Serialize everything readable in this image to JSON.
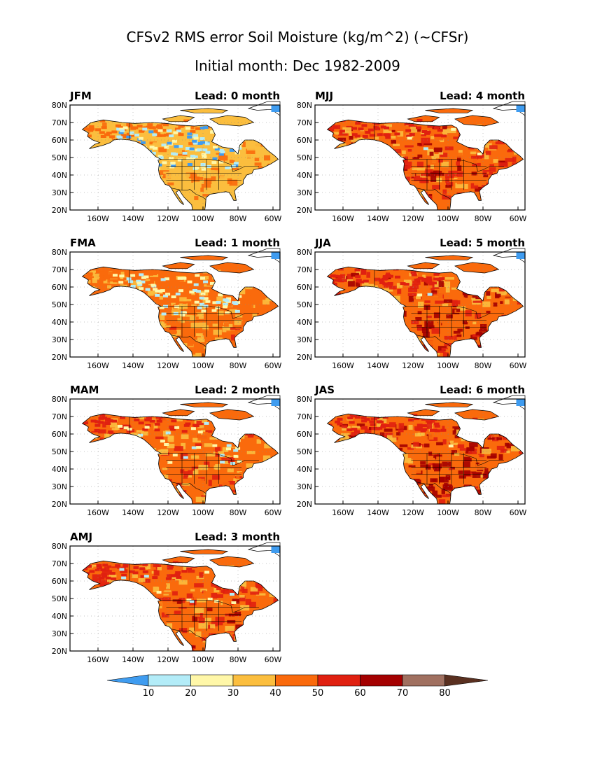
{
  "figure": {
    "title": "CFSv2 RMS error Soil Moisture (kg/m^2) (~CFSr)",
    "subtitle": "Initial month: Dec 1982-2009"
  },
  "axes": {
    "lat_labels": [
      "20N",
      "30N",
      "40N",
      "50N",
      "60N",
      "70N",
      "80N"
    ],
    "lon_labels": [
      "160W",
      "140W",
      "120W",
      "100W",
      "80W",
      "60W"
    ]
  },
  "panels": [
    {
      "season": "JFM",
      "lead": "Lead: 0 month"
    },
    {
      "season": "FMA",
      "lead": "Lead: 1 month"
    },
    {
      "season": "MAM",
      "lead": "Lead: 2 month"
    },
    {
      "season": "AMJ",
      "lead": "Lead: 3 month"
    },
    {
      "season": "MJJ",
      "lead": "Lead: 4 month"
    },
    {
      "season": "JJA",
      "lead": "Lead: 5 month"
    },
    {
      "season": "JAS",
      "lead": "Lead: 6 month"
    }
  ],
  "colorbar": {
    "labels": [
      "10",
      "20",
      "30",
      "40",
      "50",
      "60",
      "70",
      "80"
    ],
    "colors": [
      "#3f9cf0",
      "#b3ecf8",
      "#fff7a8",
      "#fbbe3e",
      "#fa6a0c",
      "#e02010",
      "#a40000",
      "#a07060",
      "#5a3020"
    ]
  },
  "colors": {
    "water": "#ffffff",
    "land_light": "#fbbe3e",
    "land_mid": "#fa6a0c",
    "land_high": "#e02010",
    "land_max": "#a40000",
    "cool_light": "#b3ecf8",
    "cool_blue": "#3f9cf0",
    "pale_yellow": "#fff7a8"
  }
}
